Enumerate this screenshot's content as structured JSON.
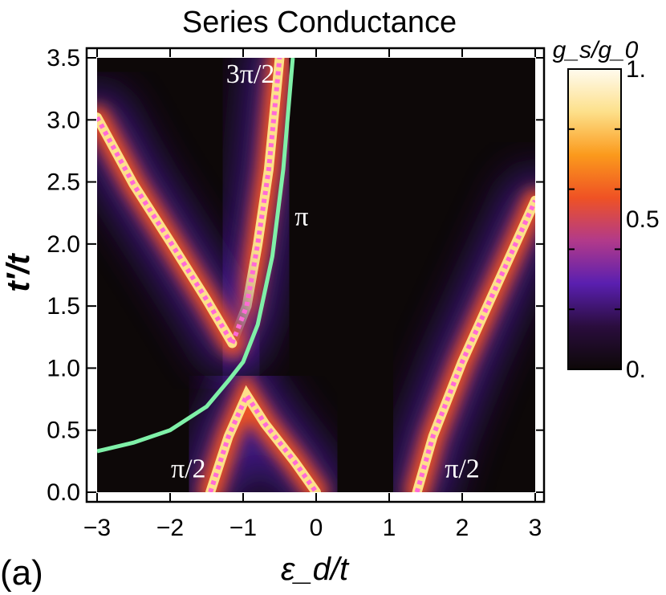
{
  "panel_label": "(a)",
  "chart_data": {
    "type": "heatmap",
    "title": "Series Conductance",
    "xlabel": "ε_d/t",
    "ylabel": "t′/t",
    "xlim": [
      -3.1,
      3.1
    ],
    "ylim": [
      -0.05,
      3.55
    ],
    "xticks": [
      -3,
      -2,
      -1,
      0,
      1,
      2,
      3
    ],
    "xtick_labels": [
      "−3",
      "−2",
      "−1",
      "0",
      "1",
      "2",
      "3"
    ],
    "yticks": [
      0.0,
      0.5,
      1.0,
      1.5,
      2.0,
      2.5,
      3.0,
      3.5
    ],
    "ytick_labels": [
      "0.0",
      "0.5",
      "1.0",
      "1.5",
      "2.0",
      "2.5",
      "3.0",
      "3.5"
    ],
    "data_extent": {
      "x": [
        -3.0,
        3.0
      ],
      "y": [
        0.0,
        3.5
      ]
    },
    "colorbar": {
      "label": "g_s/g_0",
      "range": [
        0,
        1
      ],
      "ticks": [
        0,
        0.5,
        1
      ],
      "tick_labels": [
        "0.",
        "0.5",
        "1."
      ],
      "colors": [
        "#0d0808",
        "#2a0d3d",
        "#5a1fb0",
        "#b23a8a",
        "#ef5224",
        "#fb9a1c",
        "#fde08a",
        "#fffbef"
      ]
    },
    "curves": [
      {
        "name": "pi-phase-line",
        "label": "π",
        "style": "solid",
        "color": "#7ff0a8",
        "points": [
          [
            -3.0,
            0.33
          ],
          [
            -2.5,
            0.4
          ],
          [
            -2.0,
            0.5
          ],
          [
            -1.5,
            0.69
          ],
          [
            -1.2,
            0.9
          ],
          [
            -1.0,
            1.05
          ],
          [
            -0.8,
            1.35
          ],
          [
            -0.6,
            1.9
          ],
          [
            -0.45,
            2.6
          ],
          [
            -0.32,
            3.5
          ]
        ]
      },
      {
        "name": "three-half-pi-line",
        "label": "3π/2",
        "style": "dotted",
        "color": "#ff6ad5",
        "points": [
          [
            -1.15,
            1.2
          ],
          [
            -0.95,
            1.5
          ],
          [
            -0.8,
            2.0
          ],
          [
            -0.65,
            2.6
          ],
          [
            -0.55,
            3.2
          ],
          [
            -0.5,
            3.5
          ]
        ]
      },
      {
        "name": "upper-left-branch",
        "label": "",
        "style": "dotted",
        "color": "#ff6ad5",
        "points": [
          [
            -3.0,
            3.02
          ],
          [
            -2.5,
            2.48
          ],
          [
            -2.0,
            2.02
          ],
          [
            -1.5,
            1.55
          ],
          [
            -1.15,
            1.2
          ]
        ]
      },
      {
        "name": "center-lower-branch",
        "label": "π/2",
        "style": "dotted",
        "color": "#ff6ad5",
        "points": [
          [
            -1.45,
            0.0
          ],
          [
            -1.2,
            0.45
          ],
          [
            -0.95,
            0.78
          ],
          [
            -0.7,
            0.55
          ],
          [
            -0.3,
            0.25
          ],
          [
            0.0,
            0.0
          ]
        ]
      },
      {
        "name": "right-branch",
        "label": "π/2",
        "style": "dotted",
        "color": "#ff6ad5",
        "points": [
          [
            1.38,
            0.0
          ],
          [
            1.6,
            0.45
          ],
          [
            2.0,
            1.05
          ],
          [
            2.5,
            1.7
          ],
          [
            3.0,
            2.35
          ]
        ]
      }
    ],
    "annotations": [
      {
        "text": "3π/2",
        "x": -0.9,
        "y": 3.3
      },
      {
        "text": "π",
        "x": -0.2,
        "y": 2.15
      },
      {
        "text": "π/2",
        "x": -1.75,
        "y": 0.12
      },
      {
        "text": "π/2",
        "x": 2.0,
        "y": 0.12
      }
    ]
  }
}
